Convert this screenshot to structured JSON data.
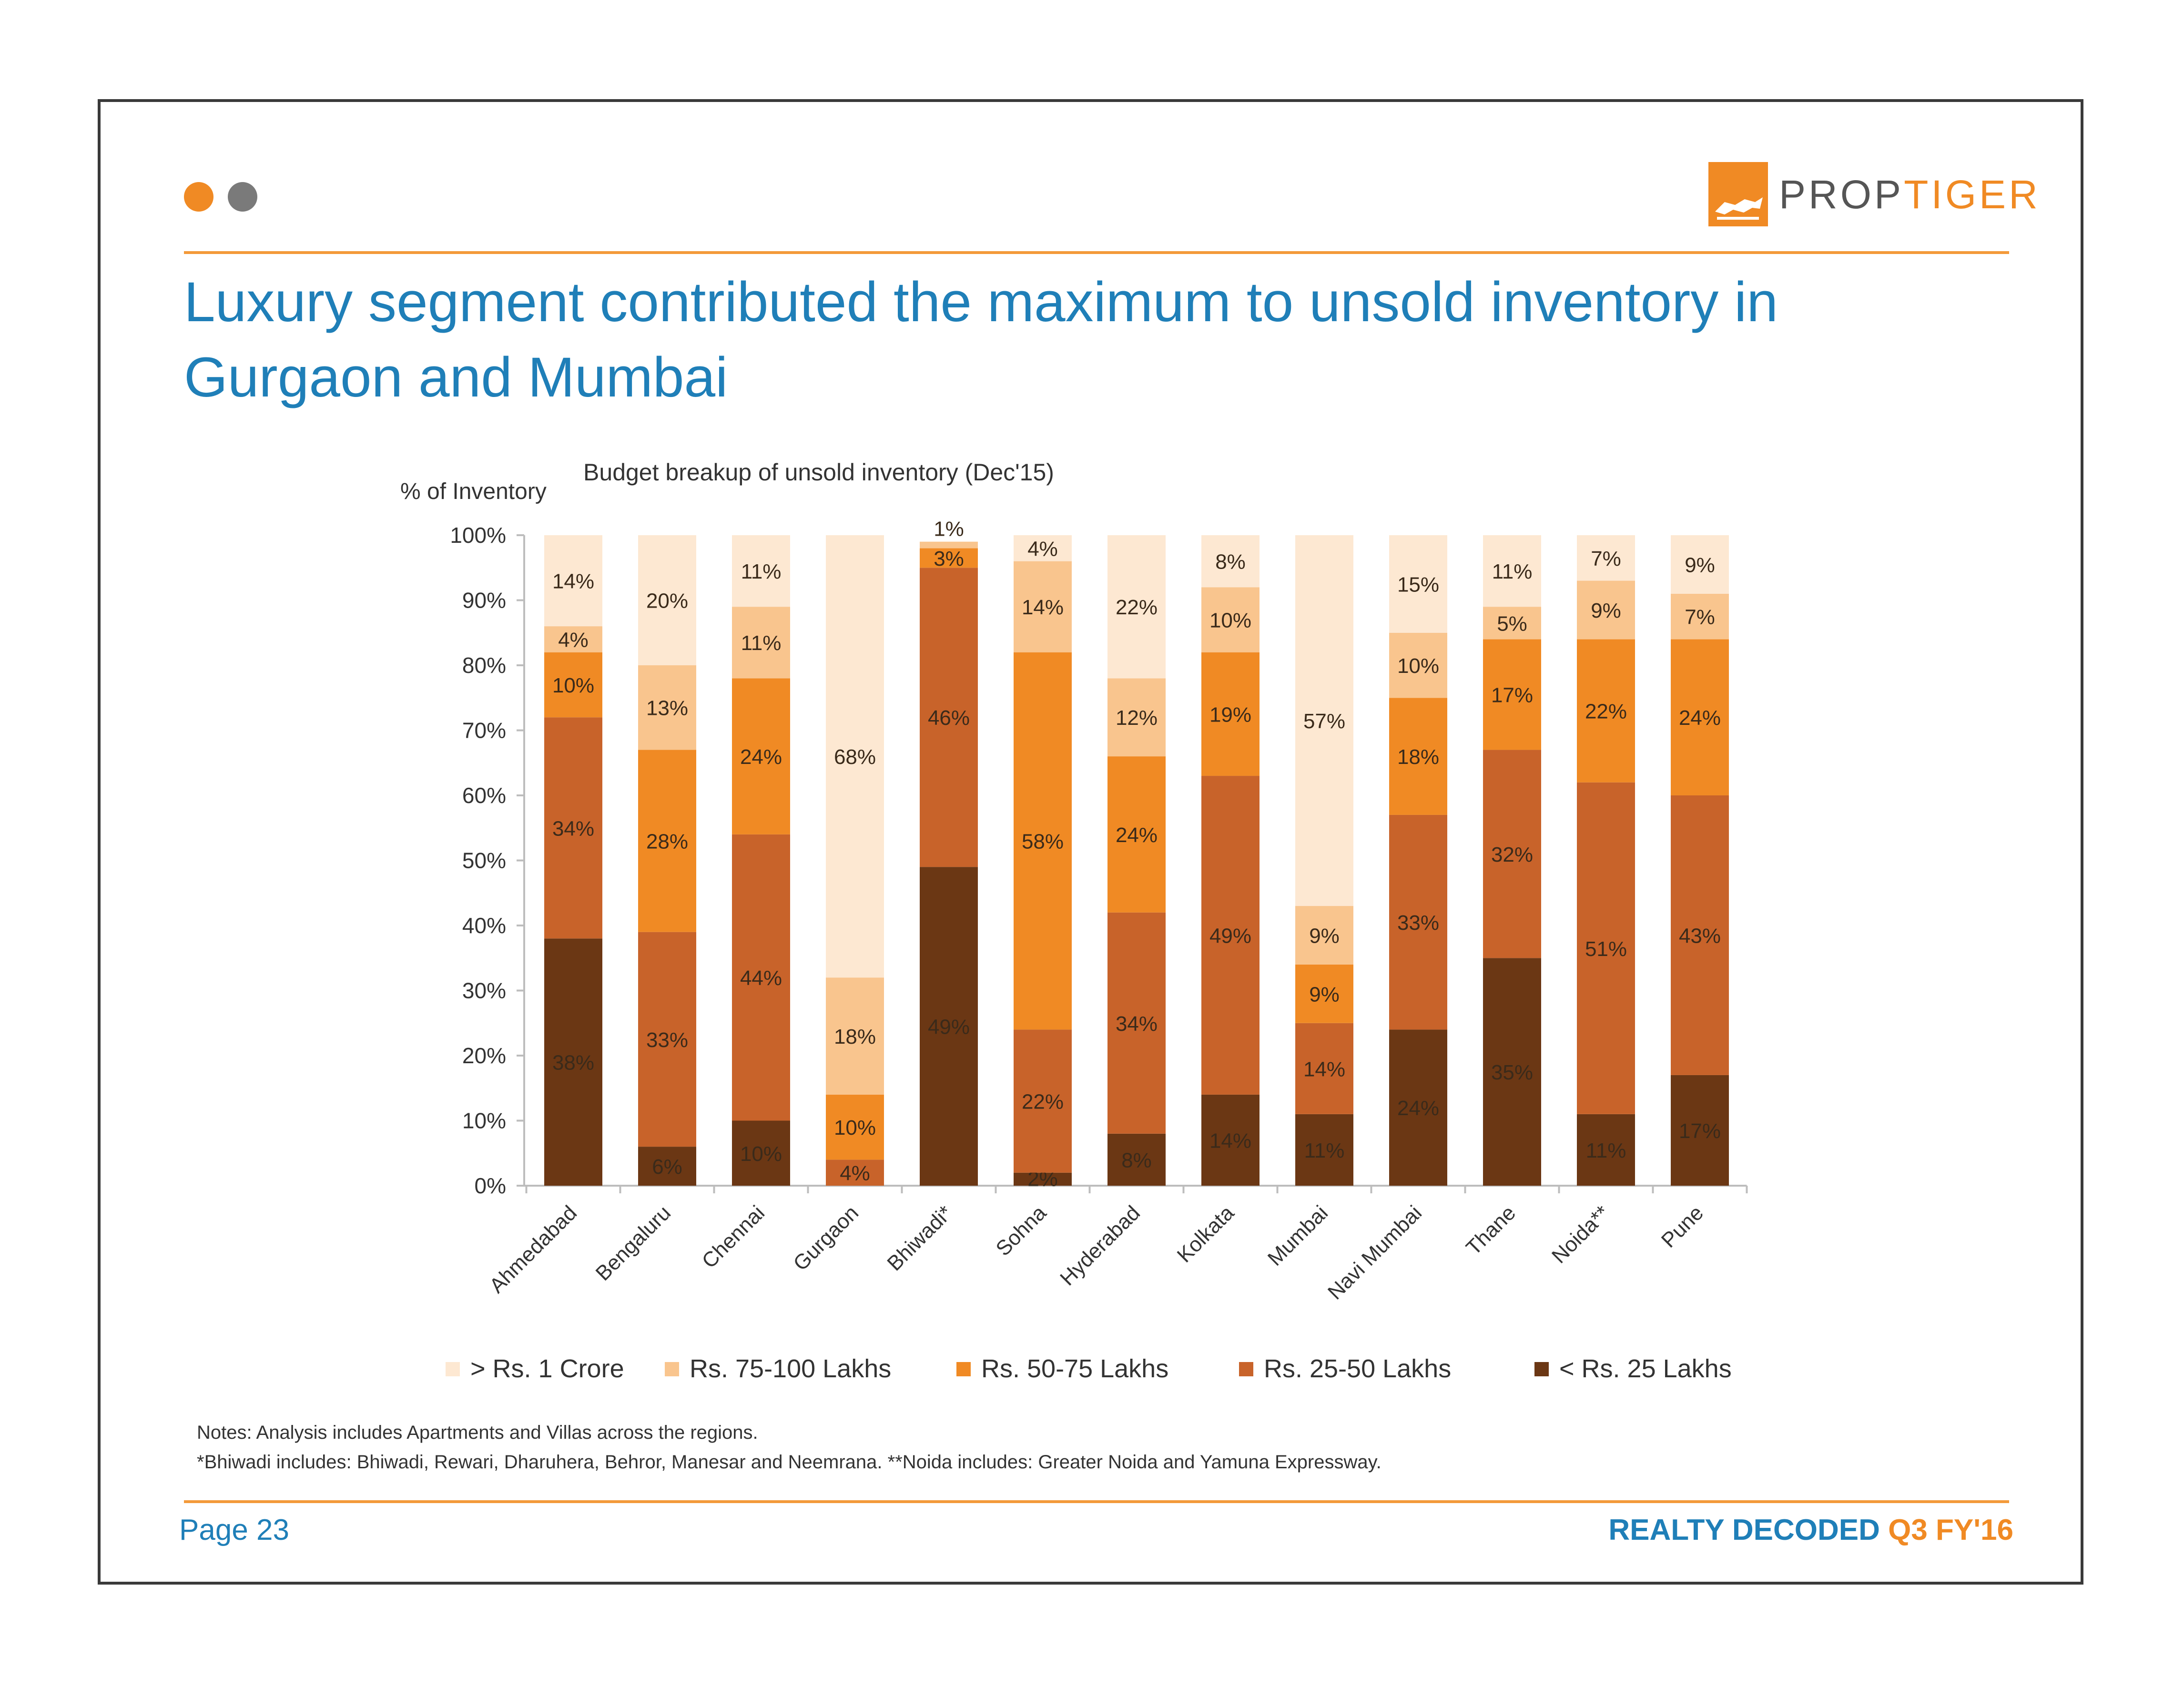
{
  "header": {
    "title_line1": "Luxury segment contributed the maximum to unsold inventory in",
    "title_line2": "Gurgaon and Mumbai",
    "logo_word_a": "PROP",
    "logo_word_b": "TIGER",
    "dot_colors": [
      "#f08a24",
      "#7a7a7a"
    ]
  },
  "chart_data": {
    "type": "bar",
    "stacked": true,
    "title": "Budget breakup of unsold inventory (Dec'15)",
    "ylabel": "% of Inventory",
    "xlabel": "",
    "ylim": [
      0,
      100
    ],
    "yticks": [
      "0%",
      "10%",
      "20%",
      "30%",
      "40%",
      "50%",
      "60%",
      "70%",
      "80%",
      "90%",
      "100%"
    ],
    "categories": [
      "Ahmedabad",
      "Bengaluru",
      "Chennai",
      "Gurgaon",
      "Bhiwadi*",
      "Sohna",
      "Hyderabad",
      "Kolkata",
      "Mumbai",
      "Navi Mumbai",
      "Thane",
      "Noida**",
      "Pune"
    ],
    "series": [
      {
        "name": "< Rs. 25 Lakhs",
        "color": "#6b3714",
        "values": [
          38,
          6,
          10,
          0,
          49,
          2,
          8,
          14,
          11,
          24,
          35,
          11,
          17
        ]
      },
      {
        "name": "Rs. 25-50 Lakhs",
        "color": "#c8632a",
        "values": [
          34,
          33,
          44,
          4,
          46,
          22,
          34,
          49,
          14,
          33,
          32,
          51,
          43
        ]
      },
      {
        "name": "Rs. 50-75 Lakhs",
        "color": "#f08a24",
        "values": [
          10,
          28,
          24,
          10,
          3,
          58,
          24,
          19,
          9,
          18,
          17,
          22,
          24
        ]
      },
      {
        "name": "Rs. 75-100 Lakhs",
        "color": "#f9c58e",
        "values": [
          4,
          13,
          11,
          18,
          1,
          14,
          12,
          10,
          9,
          10,
          5,
          9,
          7
        ]
      },
      {
        "name": "> Rs. 1 Crore",
        "color": "#fde8d2",
        "values": [
          14,
          20,
          11,
          68,
          0,
          4,
          22,
          8,
          57,
          15,
          11,
          7,
          9
        ]
      }
    ],
    "legend": "bottom"
  },
  "notes": {
    "line1": "Notes: Analysis includes Apartments and Villas across the regions.",
    "line2": "*Bhiwadi includes: Bhiwadi, Rewari, Dharuhera, Behror, Manesar and Neemrana. **Noida includes: Greater Noida and Yamuna Expressway."
  },
  "footer": {
    "page": "Page 23",
    "brand": "REALTY DECODED",
    "edition": "Q3 FY'16"
  }
}
